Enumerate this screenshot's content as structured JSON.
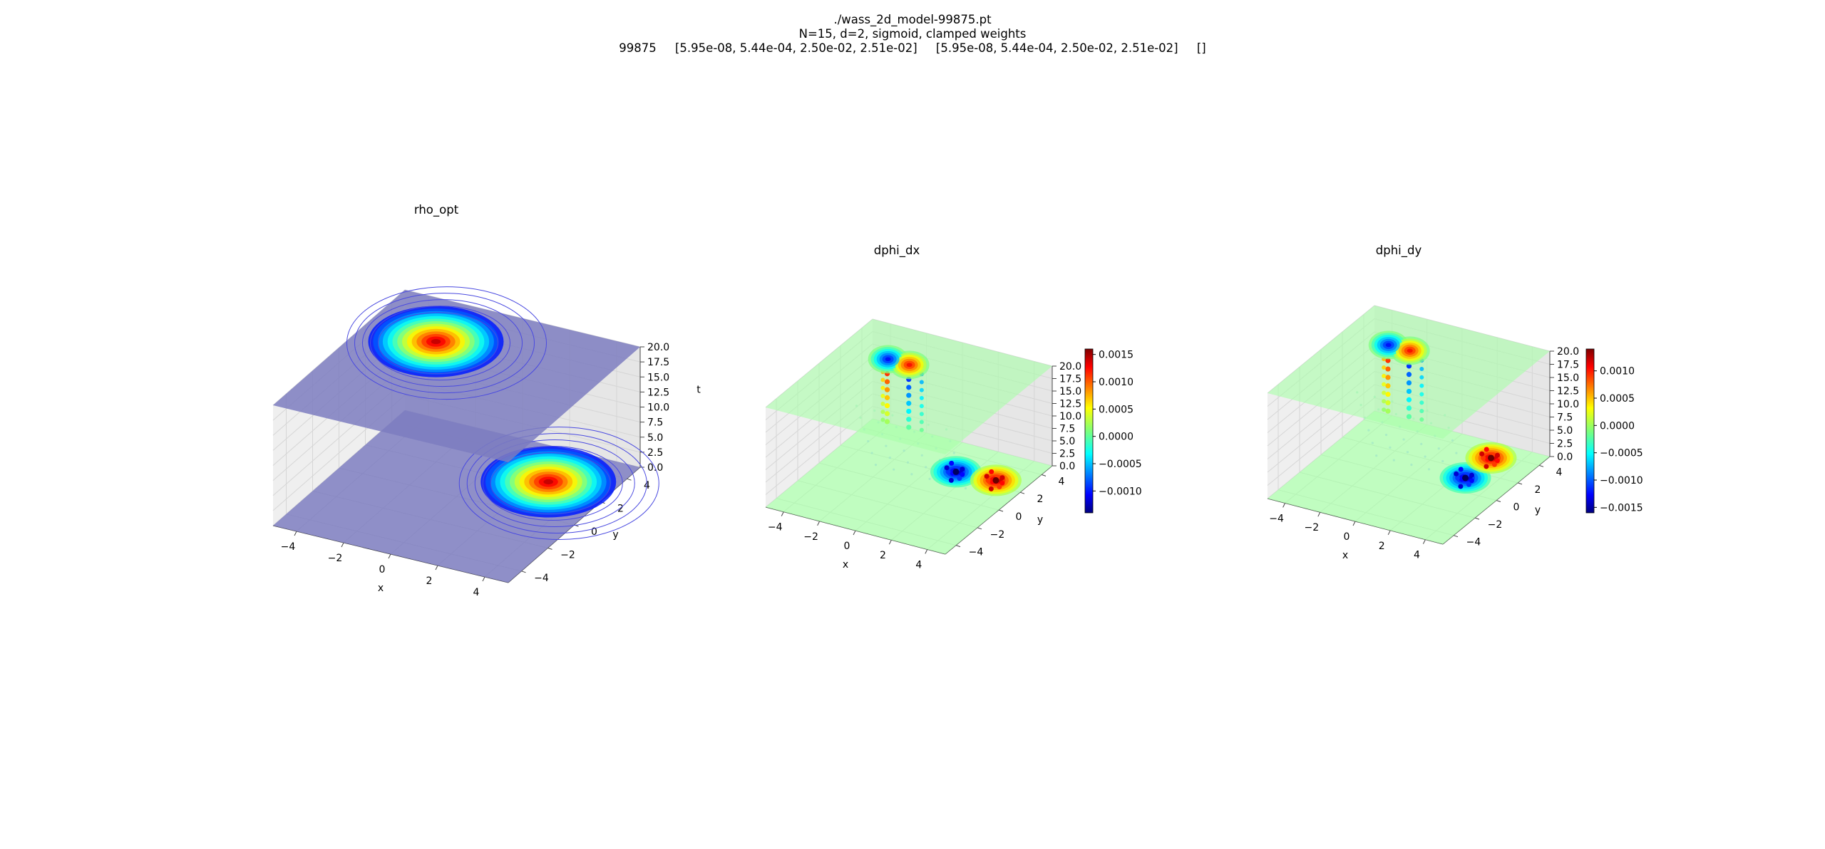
{
  "figure": {
    "suptitle_lines": [
      "./wass_2d_model-99875.pt",
      "N=15, d=2, sigmoid, clamped weights",
      "99875     [5.95e-08, 5.44e-04, 2.50e-02, 2.51e-02]     [5.95e-08, 5.44e-04, 2.50e-02, 2.51e-02]     []"
    ]
  },
  "colors": {
    "plane_rho": "#7d7dc0",
    "plane_phi": "#a8ffa8",
    "pane": "#f2f2f2",
    "grid": "#d6d6d6"
  },
  "chart_data": [
    {
      "type": "surface3d",
      "title": "rho_opt",
      "xlabel": "x",
      "ylabel": "y",
      "zlabel": "t",
      "x_ticks": [
        "−4",
        "−2",
        "0",
        "2",
        "4"
      ],
      "y_ticks": [
        "−4",
        "−2",
        "0",
        "2",
        "4"
      ],
      "z_ticks": [
        "0.0",
        "2.5",
        "5.0",
        "7.5",
        "10.0",
        "12.5",
        "15.0",
        "17.5",
        "20.0"
      ],
      "xlim": [
        -5,
        5
      ],
      "ylim": [
        -5,
        5
      ],
      "zlim": [
        0,
        20
      ],
      "planes_t": [
        0,
        20
      ],
      "blobs": [
        {
          "t": 0,
          "x": 2.5,
          "y": 2.5,
          "sign": 1
        },
        {
          "t": 20,
          "x": -2.0,
          "y": 2.0,
          "sign": 1
        }
      ],
      "colormap": "jet"
    },
    {
      "type": "scatter3d",
      "title": "dphi_dx",
      "xlabel": "x",
      "ylabel": "y",
      "zlabel": "",
      "x_ticks": [
        "−4",
        "−2",
        "0",
        "2",
        "4"
      ],
      "y_ticks": [
        "−4",
        "−2",
        "0",
        "2",
        "4"
      ],
      "z_ticks": [
        "0.0",
        "2.5",
        "5.0",
        "7.5",
        "10.0",
        "12.5",
        "15.0",
        "17.5",
        "20.0"
      ],
      "xlim": [
        -5,
        5
      ],
      "ylim": [
        -5,
        5
      ],
      "zlim": [
        0,
        20
      ],
      "colorbar": {
        "ticks": [
          "0.0015",
          "0.0010",
          "0.0005",
          "0.0000",
          "−0.0005",
          "−0.0010"
        ],
        "min": -0.0014,
        "max": 0.0016
      },
      "colormap": "jet"
    },
    {
      "type": "scatter3d",
      "title": "dphi_dy",
      "xlabel": "x",
      "ylabel": "y",
      "zlabel": "",
      "x_ticks": [
        "−4",
        "−2",
        "0",
        "2",
        "4"
      ],
      "y_ticks": [
        "−4",
        "−2",
        "0",
        "2",
        "4"
      ],
      "z_ticks": [
        "0.0",
        "2.5",
        "5.0",
        "7.5",
        "10.0",
        "12.5",
        "15.0",
        "17.5",
        "20.0"
      ],
      "xlim": [
        -5,
        5
      ],
      "ylim": [
        -5,
        5
      ],
      "zlim": [
        0,
        20
      ],
      "colorbar": {
        "ticks": [
          "0.0010",
          "0.0005",
          "0.0000",
          "−0.0005",
          "−0.0010",
          "−0.0015"
        ],
        "min": -0.0016,
        "max": 0.0014
      },
      "colormap": "jet"
    }
  ]
}
